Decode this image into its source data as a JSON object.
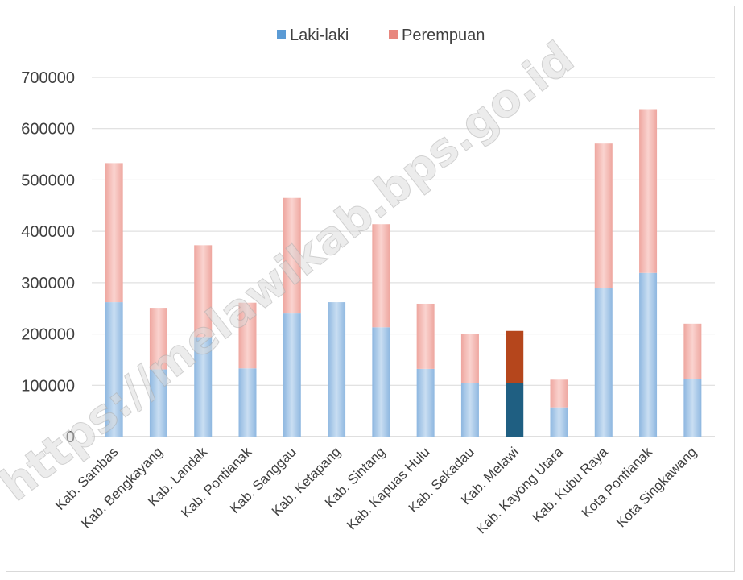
{
  "watermark": "https://melawikab.bps.go.id",
  "chart_data": {
    "type": "bar",
    "stacked": true,
    "categories": [
      "Kab. Sambas",
      "Kab. Bengkayang",
      "Kab. Landak",
      "Kab. Pontianak",
      "Kab. Sanggau",
      "Kab. Ketapang",
      "Kab. Sintang",
      "Kab. Kapuas Hulu",
      "Kab. Sekadau",
      "Kab. Melawi",
      "Kab. Kayong Utara",
      "Kab. Kubu Raya",
      "Kota Pontianak",
      "Kota Singkawang"
    ],
    "series": [
      {
        "name": "Laki-laki",
        "color": "#9dc3e6",
        "values": [
          262000,
          131000,
          194000,
          133000,
          240000,
          262000,
          213000,
          132000,
          104000,
          104000,
          57000,
          289000,
          319000,
          112000
        ]
      },
      {
        "name": "Perempuan",
        "color": "#f4b6b0",
        "values": [
          271000,
          120000,
          179000,
          128000,
          225000,
          0,
          201000,
          127000,
          96000,
          102000,
          54000,
          282000,
          319000,
          108000
        ]
      }
    ],
    "highlight": {
      "category": "Kab. Melawi",
      "colors": [
        "#1f5f82",
        "#b5461c"
      ]
    },
    "ylim": [
      0,
      700000
    ],
    "yticks": [
      0,
      100000,
      200000,
      300000,
      400000,
      500000,
      600000,
      700000
    ],
    "grid": true,
    "legend_position": "top",
    "title": "",
    "xlabel": "",
    "ylabel": ""
  }
}
